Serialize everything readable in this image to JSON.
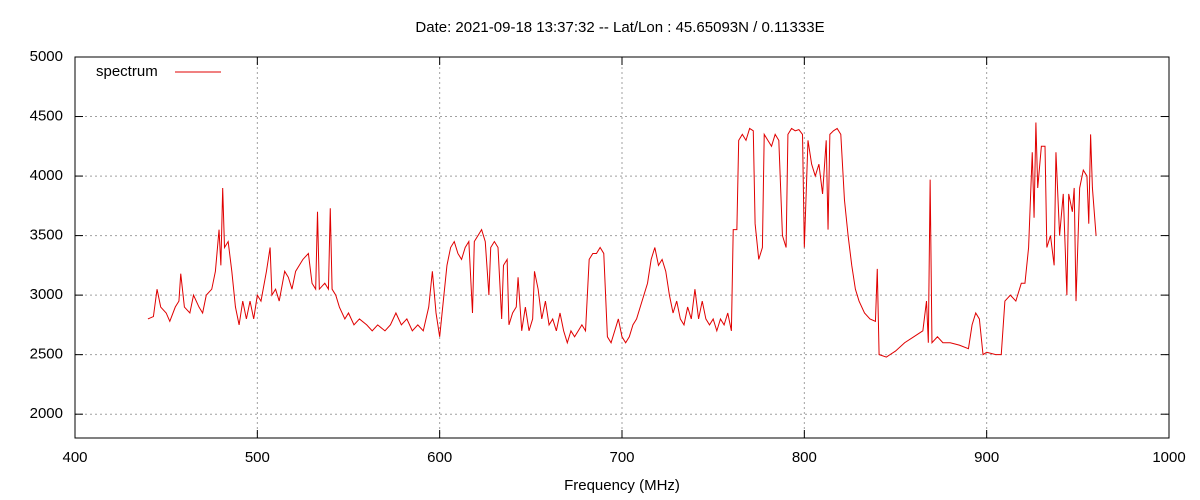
{
  "chart_data": {
    "type": "line",
    "title": "Date: 2021-09-18 13:37:32  --  Lat/Lon : 45.65093N / 0.11333E",
    "x_label": "Frequency (MHz)",
    "xlim": [
      400,
      1000
    ],
    "xticks": [
      400,
      500,
      600,
      700,
      800,
      900,
      1000
    ],
    "ylim": [
      1800,
      5000
    ],
    "yticks": [
      2000,
      2500,
      3000,
      3500,
      4000,
      4500,
      5000
    ],
    "grid": true,
    "legend": "top-left",
    "x": [
      440,
      443,
      445,
      447,
      450,
      452,
      455,
      457,
      458,
      460,
      463,
      465,
      468,
      470,
      472,
      475,
      477,
      479,
      480,
      481,
      482,
      484,
      486,
      488,
      490,
      492,
      494,
      496,
      498,
      500,
      502,
      505,
      507,
      508,
      510,
      512,
      515,
      517,
      519,
      521,
      523,
      525,
      528,
      530,
      532,
      533,
      534,
      537,
      539,
      540,
      541,
      543,
      545,
      548,
      550,
      553,
      556,
      560,
      563,
      566,
      570,
      573,
      576,
      579,
      582,
      585,
      588,
      591,
      594,
      596,
      598,
      600,
      602,
      604,
      606,
      608,
      610,
      612,
      614,
      616,
      618,
      619,
      621,
      623,
      625,
      627,
      628,
      630,
      632,
      634,
      635,
      637,
      638,
      640,
      642,
      643,
      645,
      647,
      649,
      651,
      652,
      654,
      656,
      658,
      660,
      662,
      664,
      666,
      668,
      670,
      672,
      674,
      676,
      678,
      680,
      682,
      684,
      686,
      688,
      690,
      692,
      694,
      696,
      698,
      700,
      702,
      704,
      706,
      708,
      710,
      712,
      714,
      716,
      718,
      720,
      722,
      724,
      726,
      728,
      730,
      732,
      734,
      736,
      738,
      740,
      742,
      744,
      746,
      748,
      750,
      752,
      754,
      756,
      758,
      760,
      761,
      763,
      764,
      766,
      768,
      770,
      772,
      773,
      775,
      777,
      778,
      780,
      782,
      784,
      786,
      788,
      790,
      791,
      793,
      795,
      797,
      799,
      800,
      802,
      804,
      806,
      808,
      810,
      812,
      813,
      814,
      816,
      818,
      820,
      822,
      824,
      826,
      828,
      830,
      833,
      836,
      839,
      840,
      841,
      845,
      850,
      855,
      860,
      865,
      867,
      868,
      869,
      870,
      873,
      876,
      880,
      885,
      890,
      892,
      894,
      896,
      898,
      900,
      905,
      908,
      910,
      913,
      916,
      919,
      921,
      923,
      925,
      926,
      927,
      928,
      930,
      932,
      933,
      935,
      937,
      938,
      940,
      942,
      944,
      945,
      947,
      948,
      949,
      951,
      953,
      955,
      956,
      957,
      958,
      959,
      960
    ],
    "series": [
      {
        "name": "spectrum",
        "color": "#e00000",
        "values": [
          2800,
          2820,
          3050,
          2900,
          2850,
          2780,
          2900,
          2950,
          3180,
          2900,
          2850,
          3000,
          2900,
          2850,
          3000,
          3050,
          3200,
          3550,
          3250,
          3900,
          3400,
          3450,
          3200,
          2900,
          2750,
          2950,
          2800,
          2950,
          2800,
          3000,
          2950,
          3200,
          3400,
          3000,
          3050,
          2950,
          3200,
          3150,
          3050,
          3200,
          3250,
          3300,
          3350,
          3100,
          3050,
          3700,
          3050,
          3100,
          3050,
          3730,
          3050,
          3000,
          2900,
          2800,
          2850,
          2750,
          2800,
          2750,
          2700,
          2750,
          2700,
          2750,
          2850,
          2750,
          2800,
          2700,
          2750,
          2700,
          2900,
          3200,
          2850,
          2650,
          2950,
          3250,
          3400,
          3450,
          3350,
          3300,
          3400,
          3450,
          2850,
          3450,
          3500,
          3550,
          3450,
          3000,
          3400,
          3450,
          3400,
          2800,
          3250,
          3300,
          2750,
          2850,
          2900,
          3150,
          2700,
          2900,
          2700,
          2800,
          3200,
          3050,
          2800,
          2950,
          2750,
          2800,
          2700,
          2850,
          2700,
          2600,
          2700,
          2650,
          2700,
          2750,
          2700,
          3300,
          3350,
          3350,
          3400,
          3350,
          2650,
          2600,
          2700,
          2800,
          2650,
          2600,
          2650,
          2750,
          2800,
          2900,
          3000,
          3100,
          3300,
          3400,
          3250,
          3300,
          3200,
          3000,
          2850,
          2950,
          2800,
          2750,
          2900,
          2800,
          3050,
          2800,
          2950,
          2800,
          2750,
          2800,
          2700,
          2800,
          2750,
          2850,
          2700,
          3550,
          3550,
          4300,
          4350,
          4300,
          4400,
          4380,
          3600,
          3300,
          3400,
          4350,
          4300,
          4250,
          4350,
          4300,
          3500,
          3400,
          4350,
          4400,
          4380,
          4390,
          4350,
          3400,
          4300,
          4100,
          4000,
          4100,
          3850,
          4300,
          3550,
          4350,
          4380,
          4400,
          4350,
          3800,
          3500,
          3250,
          3050,
          2950,
          2850,
          2800,
          2780,
          3220,
          2500,
          2480,
          2530,
          2600,
          2650,
          2700,
          2950,
          2600,
          3970,
          2600,
          2650,
          2600,
          2600,
          2580,
          2550,
          2750,
          2850,
          2800,
          2500,
          2520,
          2500,
          2500,
          2950,
          3000,
          2950,
          3100,
          3100,
          3400,
          4200,
          3650,
          4450,
          3900,
          4250,
          4250,
          3400,
          3500,
          3250,
          4200,
          3500,
          3850,
          3000,
          3850,
          3700,
          3900,
          2950,
          3900,
          4050,
          4000,
          3600,
          4350,
          3900,
          3700,
          3500
        ]
      }
    ]
  }
}
